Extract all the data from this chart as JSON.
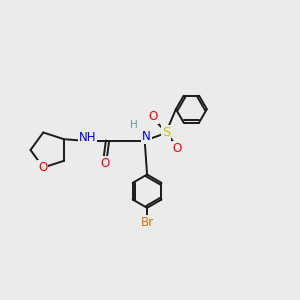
{
  "background_color": "#ebebeb",
  "bond_color": "#1a1a1a",
  "O_color": "#ff0000",
  "N_color": "#0000ee",
  "S_color": "#cccc00",
  "Br_color": "#cc7700",
  "H_color": "#6a9a9a",
  "line_width": 1.4,
  "dbo": 0.055,
  "xlim": [
    0,
    10
  ],
  "ylim": [
    0,
    10
  ]
}
